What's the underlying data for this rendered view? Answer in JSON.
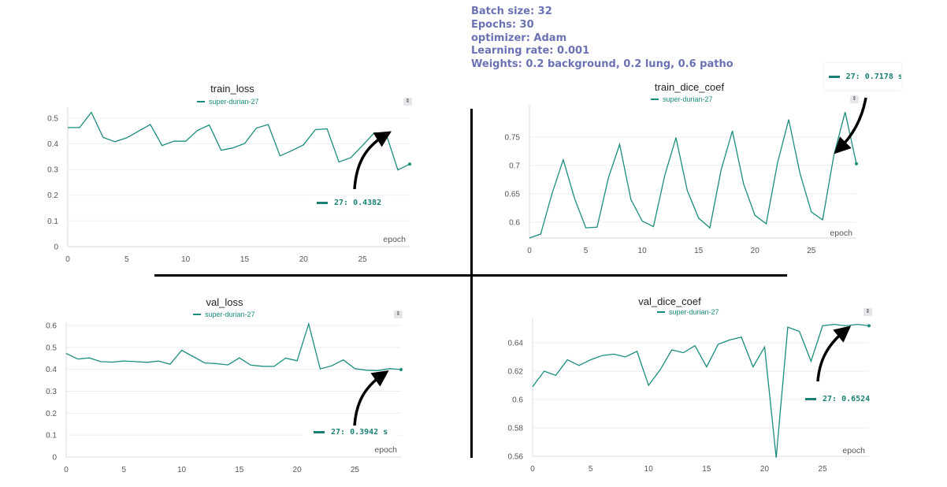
{
  "notes": [
    "Batch size: 32",
    "Epochs: 30",
    "optimizer: Adam",
    "Learning rate: 0.001",
    "Weights: 0.2 background, 0.2 lung, 0.6 patho"
  ],
  "colors": {
    "series": "#1a8c7e",
    "notes": "#6a72b4",
    "grid": "#eceef1",
    "arrow": "#000000"
  },
  "chart_data": [
    {
      "type": "line",
      "title": "train_loss",
      "xlabel": "epoch",
      "legend": "super-durian-27",
      "xlim": [
        0,
        29
      ],
      "ylim": [
        0,
        0.53
      ],
      "xticks": [
        0,
        5,
        10,
        15,
        20,
        25
      ],
      "yticks": [
        0,
        0.1,
        0.2,
        0.3,
        0.4,
        0.5
      ],
      "tick_labels_y": [
        "0",
        "0.1",
        "0.2",
        "0.3",
        "0.4",
        "0.5"
      ],
      "tooltip": {
        "label": "27: 0.4382",
        "epoch": 27,
        "value": 0.4382
      },
      "series": [
        {
          "name": "super-durian-27",
          "x": [
            0,
            1,
            2,
            3,
            4,
            5,
            6,
            7,
            8,
            9,
            10,
            11,
            12,
            13,
            14,
            15,
            16,
            17,
            18,
            19,
            20,
            21,
            22,
            23,
            24,
            25,
            26,
            27,
            28,
            29
          ],
          "y": [
            0.463,
            0.463,
            0.522,
            0.425,
            0.408,
            0.423,
            0.449,
            0.475,
            0.393,
            0.41,
            0.41,
            0.452,
            0.473,
            0.375,
            0.384,
            0.401,
            0.461,
            0.475,
            0.353,
            0.373,
            0.396,
            0.455,
            0.458,
            0.329,
            0.346,
            0.393,
            0.443,
            0.438,
            0.298,
            0.321
          ]
        }
      ]
    },
    {
      "type": "line",
      "title": "train_dice_coef",
      "xlabel": "epoch",
      "legend": "super-durian-27",
      "xlim": [
        0,
        29
      ],
      "ylim": [
        0.572,
        0.8
      ],
      "xticks": [
        0,
        5,
        10,
        15,
        20,
        25
      ],
      "yticks": [
        0.6,
        0.65,
        0.7,
        0.75
      ],
      "tick_labels_y": [
        "0.6",
        "0.65",
        "0.7",
        "0.75"
      ],
      "tooltip": {
        "label": "27: 0.7178 s",
        "epoch": 27,
        "value": 0.7178
      },
      "series": [
        {
          "name": "super-durian-27",
          "x": [
            0,
            1,
            2,
            3,
            4,
            5,
            6,
            7,
            8,
            9,
            10,
            11,
            12,
            13,
            14,
            15,
            16,
            17,
            18,
            19,
            20,
            21,
            22,
            23,
            24,
            25,
            26,
            27,
            28,
            29
          ],
          "y": [
            0.572,
            0.579,
            0.65,
            0.71,
            0.642,
            0.59,
            0.591,
            0.678,
            0.737,
            0.64,
            0.602,
            0.592,
            0.682,
            0.749,
            0.656,
            0.607,
            0.59,
            0.692,
            0.761,
            0.667,
            0.612,
            0.597,
            0.704,
            0.781,
            0.686,
            0.618,
            0.604,
            0.718,
            0.794,
            0.703
          ]
        }
      ]
    },
    {
      "type": "line",
      "title": "val_loss",
      "xlabel": "epoch",
      "legend": "super-durian-27",
      "xlim": [
        0,
        29
      ],
      "ylim": [
        0,
        0.6
      ],
      "xticks": [
        0,
        5,
        10,
        15,
        20,
        25
      ],
      "yticks": [
        0,
        0.1,
        0.2,
        0.3,
        0.4,
        0.5,
        0.6
      ],
      "tick_labels_y": [
        "0",
        "0.1",
        "0.2",
        "0.3",
        "0.4",
        "0.5",
        "0.6"
      ],
      "tooltip": {
        "label": "27: 0.3942 s",
        "epoch": 27,
        "value": 0.3942
      },
      "series": [
        {
          "name": "super-durian-27",
          "x": [
            0,
            1,
            2,
            3,
            4,
            5,
            6,
            7,
            8,
            9,
            10,
            11,
            12,
            13,
            14,
            15,
            16,
            17,
            18,
            19,
            20,
            21,
            22,
            23,
            24,
            25,
            26,
            27,
            28,
            29
          ],
          "y": [
            0.472,
            0.447,
            0.452,
            0.435,
            0.433,
            0.438,
            0.435,
            0.432,
            0.438,
            0.423,
            0.487,
            0.458,
            0.429,
            0.426,
            0.42,
            0.452,
            0.419,
            0.414,
            0.413,
            0.451,
            0.439,
            0.607,
            0.402,
            0.416,
            0.443,
            0.403,
            0.396,
            0.394,
            0.403,
            0.399
          ]
        }
      ]
    },
    {
      "type": "line",
      "title": "val_dice_coef",
      "xlabel": "epoch",
      "legend": "super-durian-27",
      "xlim": [
        0,
        29
      ],
      "ylim": [
        0.56,
        0.655
      ],
      "xticks": [
        0,
        5,
        10,
        15,
        20,
        25
      ],
      "yticks": [
        0.56,
        0.58,
        0.6,
        0.62,
        0.64
      ],
      "tick_labels_y": [
        "0.56",
        "0.58",
        "0.6",
        "0.62",
        "0.64"
      ],
      "tooltip": {
        "label": "27: 0.6524",
        "epoch": 27,
        "value": 0.6524
      },
      "series": [
        {
          "name": "super-durian-27",
          "x": [
            0,
            1,
            2,
            3,
            4,
            5,
            6,
            7,
            8,
            9,
            10,
            11,
            12,
            13,
            14,
            15,
            16,
            17,
            18,
            19,
            20,
            21,
            22,
            23,
            24,
            25,
            26,
            27,
            28,
            29
          ],
          "y": [
            0.609,
            0.62,
            0.617,
            0.628,
            0.624,
            0.628,
            0.631,
            0.632,
            0.63,
            0.634,
            0.61,
            0.621,
            0.635,
            0.633,
            0.638,
            0.623,
            0.639,
            0.642,
            0.644,
            0.623,
            0.637,
            0.559,
            0.651,
            0.648,
            0.627,
            0.652,
            0.653,
            0.652,
            0.653,
            0.652
          ]
        }
      ]
    }
  ]
}
